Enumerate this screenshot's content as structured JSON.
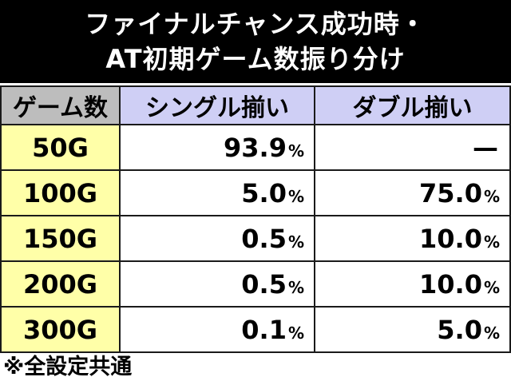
{
  "title": {
    "line1": "ファイナルチャンス成功時・",
    "line2": "AT初期ゲーム数振り分け"
  },
  "table": {
    "headers": [
      "ゲーム数",
      "シングル揃い",
      "ダブル揃い"
    ],
    "rows": [
      {
        "games": "50G",
        "single": "93.9",
        "single_unit": "%",
        "double": "—",
        "double_unit": ""
      },
      {
        "games": "100G",
        "single": "5.0",
        "single_unit": "%",
        "double": "75.0",
        "double_unit": "%"
      },
      {
        "games": "150G",
        "single": "0.5",
        "single_unit": "%",
        "double": "10.0",
        "double_unit": "%"
      },
      {
        "games": "200G",
        "single": "0.5",
        "single_unit": "%",
        "double": "10.0",
        "double_unit": "%"
      },
      {
        "games": "300G",
        "single": "0.1",
        "single_unit": "%",
        "double": "5.0",
        "double_unit": "%"
      }
    ]
  },
  "footnote": "※全設定共通",
  "colors": {
    "header_bg": "#000000",
    "header_text": "#ffffff",
    "games_col_bg": "#ffffa8",
    "column_header_bg": "#cfcff5",
    "first_header_bg": "#bdbdbd"
  }
}
